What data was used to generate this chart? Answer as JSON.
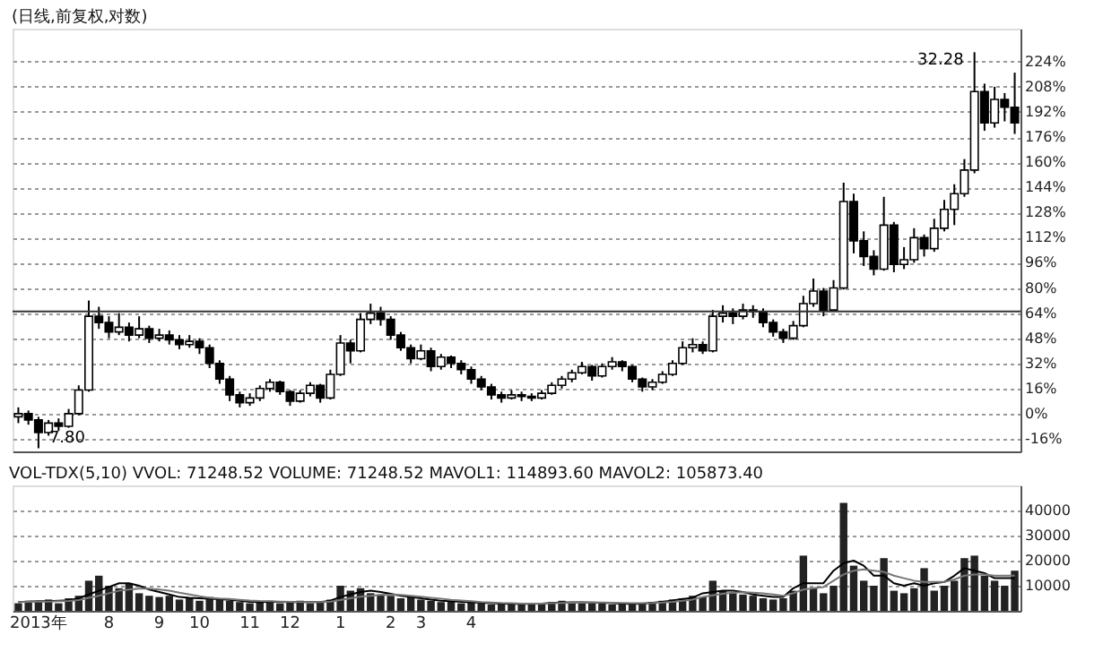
{
  "chart_data": [
    {
      "type": "candlestick",
      "title": "(日线,前复权,对数)",
      "categories": [
        null,
        null,
        null,
        null,
        null,
        null,
        null,
        null,
        null,
        null,
        null,
        null,
        null,
        null,
        null,
        null,
        null,
        null,
        null,
        null,
        null,
        null,
        null,
        null,
        null,
        null,
        null,
        null,
        null,
        null,
        null,
        null,
        null,
        null,
        null,
        null,
        null,
        null,
        null,
        null,
        null,
        null,
        null,
        null,
        null,
        null,
        null,
        null,
        null,
        null,
        null,
        null,
        null,
        null,
        null,
        null,
        null,
        null,
        null,
        null,
        null,
        null,
        null,
        null,
        null,
        null,
        null,
        null,
        null,
        null,
        null,
        null,
        null,
        null,
        null,
        null,
        null,
        null,
        null,
        null,
        null,
        null,
        null,
        null,
        null,
        null,
        null,
        null,
        null,
        null,
        null,
        null,
        null,
        null,
        null,
        null,
        null,
        null,
        null,
        null
      ],
      "ohlc": [
        [
          -2,
          4,
          -6,
          0
        ],
        [
          0,
          2,
          -7,
          -4
        ],
        [
          -4,
          -2,
          -22,
          -12
        ],
        [
          -12,
          -4,
          -14,
          -6
        ],
        [
          -6,
          -3,
          -11,
          -8
        ],
        [
          -8,
          3,
          -9,
          0
        ],
        [
          0,
          18,
          -1,
          15
        ],
        [
          15,
          72,
          14,
          62
        ],
        [
          62,
          68,
          54,
          58
        ],
        [
          58,
          62,
          48,
          52
        ],
        [
          52,
          64,
          50,
          55
        ],
        [
          55,
          58,
          46,
          50
        ],
        [
          50,
          62,
          48,
          54
        ],
        [
          54,
          56,
          45,
          48
        ],
        [
          48,
          54,
          46,
          50
        ],
        [
          50,
          53,
          44,
          47
        ],
        [
          47,
          50,
          41,
          44
        ],
        [
          44,
          50,
          42,
          46
        ],
        [
          46,
          48,
          38,
          42
        ],
        [
          42,
          44,
          29,
          32
        ],
        [
          32,
          34,
          19,
          22
        ],
        [
          22,
          24,
          8,
          12
        ],
        [
          12,
          14,
          4,
          7
        ],
        [
          7,
          13,
          5,
          10
        ],
        [
          10,
          18,
          8,
          16
        ],
        [
          16,
          22,
          14,
          20
        ],
        [
          20,
          21,
          12,
          14
        ],
        [
          14,
          15,
          5,
          8
        ],
        [
          8,
          15,
          7,
          13
        ],
        [
          13,
          20,
          11,
          18
        ],
        [
          18,
          19,
          7,
          10
        ],
        [
          10,
          28,
          9,
          25
        ],
        [
          25,
          50,
          24,
          45
        ],
        [
          45,
          47,
          32,
          40
        ],
        [
          40,
          64,
          39,
          60
        ],
        [
          60,
          70,
          57,
          64
        ],
        [
          64,
          68,
          56,
          60
        ],
        [
          60,
          62,
          47,
          50
        ],
        [
          50,
          52,
          40,
          42
        ],
        [
          42,
          44,
          32,
          35
        ],
        [
          35,
          44,
          34,
          40
        ],
        [
          40,
          42,
          27,
          30
        ],
        [
          30,
          38,
          28,
          36
        ],
        [
          36,
          37,
          29,
          32
        ],
        [
          32,
          34,
          25,
          28
        ],
        [
          28,
          30,
          19,
          22
        ],
        [
          22,
          24,
          15,
          17
        ],
        [
          17,
          19,
          9,
          12
        ],
        [
          12,
          14,
          7,
          10
        ],
        [
          10,
          15,
          9,
          12
        ],
        [
          12,
          14,
          8,
          11
        ],
        [
          11,
          13,
          8,
          10
        ],
        [
          10,
          15,
          9,
          13
        ],
        [
          13,
          20,
          12,
          18
        ],
        [
          18,
          24,
          16,
          22
        ],
        [
          22,
          28,
          20,
          26
        ],
        [
          26,
          33,
          25,
          30
        ],
        [
          30,
          31,
          21,
          24
        ],
        [
          24,
          32,
          23,
          30
        ],
        [
          30,
          36,
          28,
          33
        ],
        [
          33,
          34,
          27,
          30
        ],
        [
          30,
          31,
          20,
          22
        ],
        [
          22,
          23,
          14,
          17
        ],
        [
          17,
          22,
          15,
          20
        ],
        [
          20,
          27,
          19,
          25
        ],
        [
          25,
          34,
          24,
          32
        ],
        [
          32,
          46,
          31,
          42
        ],
        [
          42,
          48,
          39,
          44
        ],
        [
          44,
          46,
          38,
          40
        ],
        [
          40,
          66,
          39,
          62
        ],
        [
          62,
          69,
          58,
          64
        ],
        [
          64,
          67,
          57,
          62
        ],
        [
          62,
          70,
          60,
          66
        ],
        [
          66,
          69,
          61,
          65
        ],
        [
          65,
          67,
          55,
          58
        ],
        [
          58,
          60,
          49,
          52
        ],
        [
          52,
          54,
          45,
          48
        ],
        [
          48,
          59,
          47,
          56
        ],
        [
          56,
          75,
          55,
          70
        ],
        [
          70,
          86,
          68,
          78
        ],
        [
          78,
          80,
          62,
          66
        ],
        [
          66,
          85,
          65,
          80
        ],
        [
          80,
          147,
          79,
          135
        ],
        [
          135,
          140,
          102,
          110
        ],
        [
          110,
          116,
          94,
          100
        ],
        [
          100,
          104,
          88,
          92
        ],
        [
          92,
          138,
          91,
          120
        ],
        [
          120,
          122,
          90,
          95
        ],
        [
          95,
          106,
          92,
          98
        ],
        [
          98,
          118,
          96,
          112
        ],
        [
          112,
          114,
          100,
          105
        ],
        [
          105,
          124,
          103,
          118
        ],
        [
          118,
          136,
          116,
          130
        ],
        [
          130,
          146,
          120,
          140
        ],
        [
          140,
          162,
          138,
          155
        ],
        [
          155,
          230,
          153,
          205
        ],
        [
          205,
          210,
          180,
          185
        ],
        [
          185,
          208,
          182,
          200
        ],
        [
          200,
          204,
          186,
          195
        ],
        [
          195,
          217,
          178,
          185
        ]
      ],
      "ylim": [
        -24,
        245
      ],
      "yticks": [
        {
          "value": -16,
          "label": "-16%"
        },
        {
          "value": 0,
          "label": "0%"
        },
        {
          "value": 16,
          "label": "16%"
        },
        {
          "value": 32,
          "label": "32%"
        },
        {
          "value": 48,
          "label": "48%"
        },
        {
          "value": 64,
          "label": "64%"
        },
        {
          "value": 80,
          "label": "80%"
        },
        {
          "value": 96,
          "label": "96%"
        },
        {
          "value": 112,
          "label": "112%"
        },
        {
          "value": 128,
          "label": "128%"
        },
        {
          "value": 144,
          "label": "144%"
        },
        {
          "value": 160,
          "label": "160%"
        },
        {
          "value": 176,
          "label": "176%"
        },
        {
          "value": 192,
          "label": "192%"
        },
        {
          "value": 208,
          "label": "208%"
        },
        {
          "value": 224,
          "label": "224%"
        }
      ],
      "grid": "y",
      "tick_labels": "y",
      "ref_lines": [
        {
          "axis": "y",
          "value": 65,
          "color": "#333333"
        }
      ],
      "annotations": [
        "7.80",
        "32.28"
      ]
    },
    {
      "type": "bar",
      "title": "VOL-TDX(5,10) VVOL: 71248.52  VOLUME: 71248.52  MAVOL1: 114893.60  MAVOL2: 105873.40",
      "categories": [
        null,
        null,
        "2013年",
        null,
        null,
        null,
        null,
        null,
        null,
        "8",
        null,
        null,
        null,
        null,
        "9",
        null,
        null,
        null,
        "10",
        null,
        null,
        null,
        null,
        "11",
        null,
        null,
        null,
        "12",
        null,
        null,
        null,
        null,
        "1",
        null,
        null,
        null,
        null,
        "2",
        null,
        null,
        "3",
        null,
        null,
        null,
        null,
        "4",
        null,
        null,
        null,
        null,
        null,
        null,
        null,
        null,
        null,
        null,
        null,
        null,
        null,
        null,
        null,
        null,
        null,
        null,
        null,
        null,
        null,
        null,
        null,
        null,
        null,
        null,
        null,
        null,
        null,
        null,
        null,
        null,
        null,
        null,
        null,
        null,
        null,
        null,
        null,
        null,
        null,
        null,
        null,
        null,
        null,
        null,
        null,
        null,
        null,
        null,
        null,
        null,
        null,
        null
      ],
      "series": [
        {
          "type": "bar",
          "color": "#222222",
          "values": [
            3000,
            4000,
            3500,
            4500,
            3000,
            5000,
            6000,
            12000,
            14000,
            10000,
            9000,
            11000,
            7000,
            6000,
            5500,
            6000,
            4500,
            5000,
            4000,
            5500,
            4500,
            4000,
            3500,
            3000,
            3500,
            4000,
            3000,
            3500,
            4000,
            3000,
            3500,
            4500,
            10000,
            8000,
            9000,
            7000,
            6500,
            6000,
            5000,
            5500,
            4500,
            4000,
            3500,
            4000,
            3000,
            3500,
            3000,
            2500,
            3000,
            2500,
            3000,
            2500,
            3000,
            3500,
            4000,
            3500,
            3000,
            3500,
            3000,
            2500,
            3000,
            2500,
            3000,
            3500,
            4000,
            4500,
            5000,
            6000,
            5500,
            12000,
            8000,
            7000,
            6500,
            6000,
            5000,
            4500,
            5000,
            8000,
            22000,
            9000,
            7000,
            10000,
            43000,
            18000,
            12000,
            10000,
            21000,
            8000,
            7000,
            9000,
            17000,
            8000,
            10000,
            12000,
            21000,
            22000,
            14000,
            12000,
            10000,
            16000
          ]
        },
        {
          "type": "line",
          "color": "#000000",
          "values": [
            3500,
            3700,
            3800,
            3800,
            4000,
            4200,
            5000,
            6500,
            8000,
            9500,
            11000,
            11000,
            10000,
            8500,
            7500,
            6500,
            5500,
            5200,
            5000,
            4800,
            4600,
            4400,
            4000,
            3600,
            3500,
            3600,
            3600,
            3500,
            3500,
            3500,
            3500,
            4000,
            5500,
            6500,
            7500,
            8000,
            7500,
            6800,
            6000,
            5500,
            5000,
            4500,
            4000,
            3800,
            3600,
            3400,
            3200,
            3000,
            2900,
            2800,
            2800,
            2800,
            2900,
            3100,
            3300,
            3400,
            3400,
            3300,
            3200,
            3000,
            2900,
            2800,
            2900,
            3200,
            3600,
            4100,
            4700,
            5200,
            7000,
            7500,
            8000,
            8000,
            7500,
            6500,
            6000,
            5500,
            5500,
            9000,
            11000,
            11000,
            11000,
            16000,
            19000,
            20000,
            18000,
            14000,
            14000,
            11000,
            10000,
            11000,
            10000,
            11000,
            11500,
            14000,
            17000,
            16000,
            15000,
            13000,
            13000,
            13000
          ]
        },
        {
          "type": "line",
          "color": "#777777",
          "values": [
            3500,
            3600,
            3700,
            3700,
            3800,
            3900,
            4300,
            5200,
            6000,
            7000,
            8000,
            8500,
            8800,
            8800,
            8500,
            8000,
            7200,
            6500,
            5800,
            5200,
            4900,
            4700,
            4400,
            4100,
            3900,
            3800,
            3700,
            3600,
            3500,
            3500,
            3500,
            3700,
            4300,
            5000,
            5600,
            6000,
            6300,
            6400,
            6300,
            6000,
            5600,
            5200,
            4800,
            4400,
            4100,
            3800,
            3500,
            3300,
            3100,
            3000,
            2900,
            2900,
            2900,
            3000,
            3100,
            3200,
            3300,
            3300,
            3300,
            3200,
            3100,
            3000,
            3000,
            3100,
            3300,
            3600,
            4000,
            4500,
            5500,
            6200,
            6800,
            7200,
            7400,
            7200,
            7000,
            6500,
            6000,
            7000,
            8500,
            9000,
            9500,
            12000,
            14500,
            16000,
            16500,
            16000,
            15500,
            14000,
            13000,
            12000,
            11500,
            11500,
            11500,
            12500,
            14000,
            14500,
            14500,
            14000,
            14000,
            14000
          ]
        }
      ],
      "ylim": [
        0,
        50000
      ],
      "yticks": [
        10000,
        20000,
        30000,
        40000
      ],
      "grid": "y"
    }
  ]
}
